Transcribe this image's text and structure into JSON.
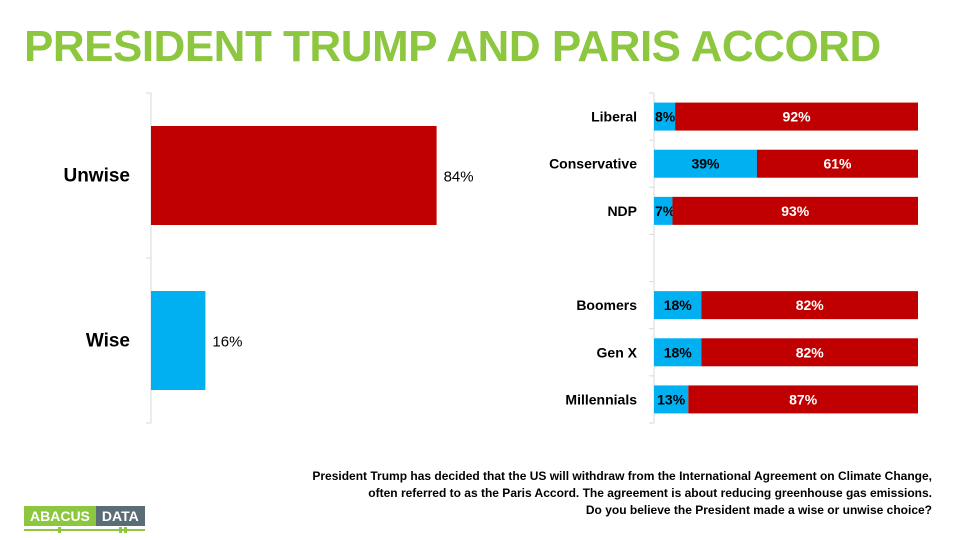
{
  "title": "PRESIDENT TRUMP AND PARIS ACCORD",
  "colors": {
    "unwise": "#c00000",
    "wise": "#00b0f0",
    "title": "#8dc63f"
  },
  "chart_data": [
    {
      "type": "bar",
      "orientation": "horizontal",
      "categories": [
        "Unwise",
        "Wise"
      ],
      "values": [
        84,
        16
      ],
      "value_labels": [
        "84%",
        "16%"
      ],
      "xlim": [
        0,
        100
      ]
    },
    {
      "type": "bar",
      "orientation": "horizontal",
      "stacked": true,
      "categories": [
        "Liberal",
        "Conservative",
        "NDP",
        "",
        "Boomers",
        "Gen X",
        "Millennials"
      ],
      "series": [
        {
          "name": "Wise",
          "values": [
            8,
            39,
            7,
            null,
            18,
            18,
            13
          ],
          "labels": [
            "8%",
            "39%",
            "7%",
            "",
            "18%",
            "18%",
            "13%"
          ]
        },
        {
          "name": "Unwise",
          "values": [
            92,
            61,
            93,
            null,
            82,
            82,
            87
          ],
          "labels": [
            "92%",
            "61%",
            "93%",
            "",
            "82%",
            "82%",
            "87%"
          ]
        }
      ],
      "xlim": [
        0,
        100
      ]
    }
  ],
  "footnote": {
    "line1": "President Trump has decided that the US will withdraw from the International Agreement on Climate Change,",
    "line2": "often referred to as the Paris Accord. The agreement is about reducing greenhouse gas emissions.",
    "line3": "Do you believe the President made a wise or unwise choice?"
  },
  "logo": {
    "part1": "ABACUS",
    "part2": "DATA"
  }
}
